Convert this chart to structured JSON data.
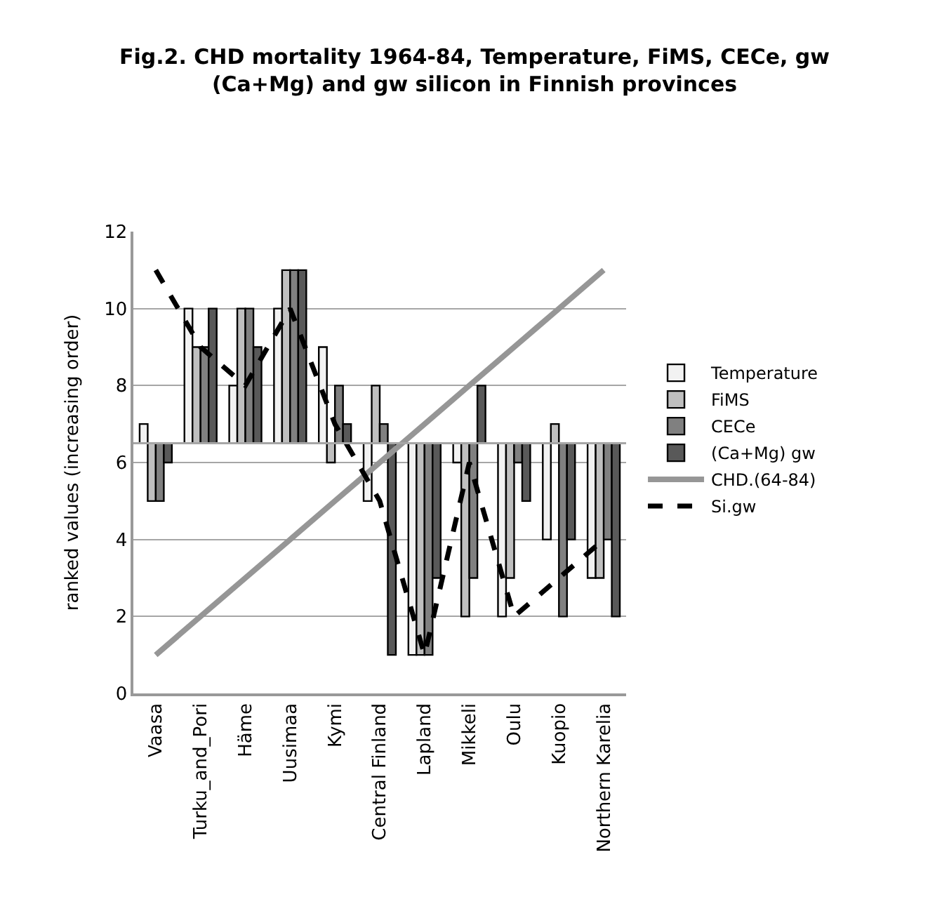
{
  "chart_data": {
    "type": "bar",
    "title": "Fig.2. CHD mortality 1964-84, Temperature, FiMS, CECe, gw (Ca+Mg) and gw silicon in Finnish provinces",
    "ylabel": "ranked values (increasing order)",
    "categories": [
      "Vaasa",
      "Turku_and_Pori",
      "Häme",
      "Uusimaa",
      "Kymi",
      "Central Finland",
      "Lapland",
      "Mikkeli",
      "Oulu",
      "Kuopio",
      "Northern Karelia"
    ],
    "series": [
      {
        "name": "Temperature",
        "color": "#f2f2f2",
        "base": [
          6.5,
          6.5,
          6.5,
          6.5,
          6.5,
          6.5,
          6.5,
          6.5,
          6.5,
          6.5,
          6.5
        ],
        "values": [
          0.5,
          3.5,
          1.5,
          3.5,
          2.5,
          -1.5,
          -5.5,
          -0.5,
          -4.5,
          -2.5,
          -3.5
        ]
      },
      {
        "name": "FiMS",
        "color": "#bfbfbf",
        "base": [
          6.5,
          6.5,
          6.5,
          6.5,
          6.5,
          6.5,
          6.5,
          6.5,
          6.5,
          6.5,
          6.5
        ],
        "values": [
          -1.5,
          2.5,
          3.5,
          4.5,
          -0.5,
          1.5,
          -5.5,
          -4.5,
          -3.5,
          0.5,
          -3.5
        ]
      },
      {
        "name": "CECe",
        "color": "#808080",
        "base": [
          6.5,
          6.5,
          6.5,
          6.5,
          6.5,
          6.5,
          6.5,
          6.5,
          6.5,
          6.5,
          6.5
        ],
        "values": [
          -1.5,
          2.5,
          3.5,
          4.5,
          1.5,
          0.5,
          -5.5,
          -3.5,
          -0.5,
          -4.5,
          -2.5
        ]
      },
      {
        "name": "(Ca+Mg) gw",
        "color": "#595959",
        "base": [
          6.5,
          6.5,
          6.5,
          6.5,
          6.5,
          6.5,
          6.5,
          6.5,
          6.5,
          6.5,
          6.5
        ],
        "values": [
          -0.5,
          3.5,
          2.5,
          4.5,
          0.5,
          -5.5,
          -3.5,
          1.5,
          -1.5,
          -2.5,
          -4.5
        ]
      },
      {
        "name": "CHD.(64-84)",
        "type": "line",
        "color": "#969696",
        "line_style": "solid",
        "values": [
          1,
          2,
          3,
          4,
          5,
          6,
          7,
          8,
          9,
          10,
          11
        ]
      },
      {
        "name": "Si.gw",
        "type": "line",
        "color": "#000000",
        "line_style": "dashed",
        "values": [
          11,
          9,
          8,
          10,
          7,
          5,
          1,
          6,
          2,
          3,
          4
        ]
      }
    ],
    "ref_lines": [
      {
        "axis": "y",
        "value": 6.5,
        "color": "#a6a6a6"
      }
    ],
    "ylim": [
      0,
      12
    ],
    "yticks": [
      0,
      2,
      4,
      6,
      8,
      10,
      12
    ],
    "grid": "y",
    "legend": "right",
    "marker": "none"
  }
}
